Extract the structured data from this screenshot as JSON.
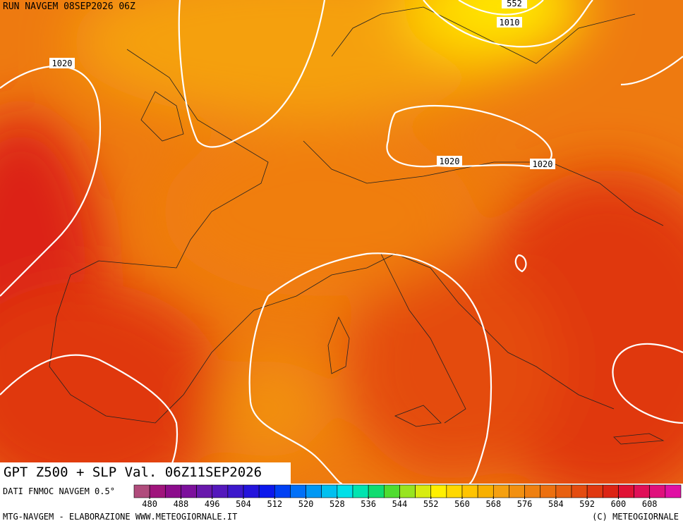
{
  "header": {
    "run": "RUN NAVGEM 08SEP2026 06Z"
  },
  "title": "GPT Z500 + SLP Val. 06Z11SEP2026",
  "source": "DATI FNMOC NAVGEM 0.5°",
  "isobar_labels": [
    "1020",
    "1010",
    "1020",
    "1020",
    "552"
  ],
  "legend": {
    "range": [
      476,
      616
    ],
    "ticks": [
      480,
      488,
      496,
      504,
      512,
      520,
      528,
      536,
      544,
      552,
      560,
      568,
      576,
      584,
      592,
      600,
      608
    ],
    "colors": [
      "#b04c7c",
      "#a0147c",
      "#8c0c8c",
      "#7c109c",
      "#6818ac",
      "#5418bc",
      "#3c18cc",
      "#2414dc",
      "#0c18ec",
      "#0040f4",
      "#0070f8",
      "#0098f4",
      "#00c0f0",
      "#00e0e8",
      "#00e4b0",
      "#10dc70",
      "#50dc30",
      "#98e420",
      "#d8ec10",
      "#fff000",
      "#ffd800",
      "#ffc400",
      "#f8b000",
      "#f5a010",
      "#f29010",
      "#ef8010",
      "#ec7010",
      "#e86010",
      "#e44c10",
      "#e03810",
      "#dc2414",
      "#e01234",
      "#e01058",
      "#e0107c",
      "#e010a4"
    ]
  },
  "footer": {
    "left": "MTG-NAVGEM - ELABORAZIONE WWW.METEOGIORNALE.IT",
    "right": "(C) METEOGIORNALE"
  }
}
